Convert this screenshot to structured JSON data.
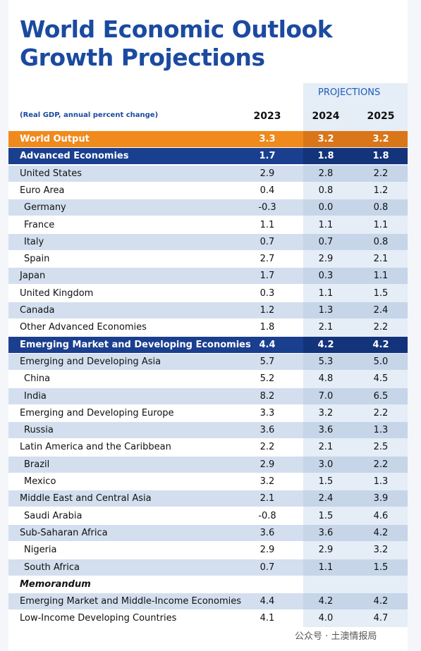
{
  "header": {
    "title": [
      "World Economic Outlook",
      "Growth Projections"
    ],
    "projections": "PROJECTIONS",
    "subtitle": "(Real GDP, annual percent change)",
    "years": [
      "2023",
      "2024",
      "2025"
    ]
  },
  "table": {
    "rows": [
      {
        "label": "World Output",
        "values": [
          "3.3",
          "3.2",
          "3.2"
        ]
      },
      {
        "label": "Advanced Economies",
        "values": [
          "1.7",
          "1.8",
          "1.8"
        ]
      },
      {
        "label": "United States",
        "values": [
          "2.9",
          "2.8",
          "2.2"
        ]
      },
      {
        "label": "Euro Area",
        "values": [
          "0.4",
          "0.8",
          "1.2"
        ]
      },
      {
        "label": "Germany",
        "values": [
          "-0.3",
          "0.0",
          "0.8"
        ]
      },
      {
        "label": "France",
        "values": [
          "1.1",
          "1.1",
          "1.1"
        ]
      },
      {
        "label": "Italy",
        "values": [
          "0.7",
          "0.7",
          "0.8"
        ]
      },
      {
        "label": "Spain",
        "values": [
          "2.7",
          "2.9",
          "2.1"
        ]
      },
      {
        "label": "Japan",
        "values": [
          "1.7",
          "0.3",
          "1.1"
        ]
      },
      {
        "label": "United Kingdom",
        "values": [
          "0.3",
          "1.1",
          "1.5"
        ]
      },
      {
        "label": "Canada",
        "values": [
          "1.2",
          "1.3",
          "2.4"
        ]
      },
      {
        "label": "Other Advanced Economies",
        "values": [
          "1.8",
          "2.1",
          "2.2"
        ]
      },
      {
        "label": "Emerging Market and Developing Economies",
        "values": [
          "4.4",
          "4.2",
          "4.2"
        ]
      },
      {
        "label": "Emerging and Developing Asia",
        "values": [
          "5.7",
          "5.3",
          "5.0"
        ]
      },
      {
        "label": "China",
        "values": [
          "5.2",
          "4.8",
          "4.5"
        ]
      },
      {
        "label": "India",
        "values": [
          "8.2",
          "7.0",
          "6.5"
        ]
      },
      {
        "label": "Emerging and Developing Europe",
        "values": [
          "3.3",
          "3.2",
          "2.2"
        ]
      },
      {
        "label": "Russia",
        "values": [
          "3.6",
          "3.6",
          "1.3"
        ]
      },
      {
        "label": "Latin America and the Caribbean",
        "values": [
          "2.2",
          "2.1",
          "2.5"
        ]
      },
      {
        "label": "Brazil",
        "values": [
          "2.9",
          "3.0",
          "2.2"
        ]
      },
      {
        "label": "Mexico",
        "values": [
          "3.2",
          "1.5",
          "1.3"
        ]
      },
      {
        "label": "Middle East and Central Asia",
        "values": [
          "2.1",
          "2.4",
          "3.9"
        ]
      },
      {
        "label": "Saudi Arabia",
        "values": [
          "-0.8",
          "1.5",
          "4.6"
        ]
      },
      {
        "label": "Sub-Saharan Africa",
        "values": [
          "3.6",
          "3.6",
          "4.2"
        ]
      },
      {
        "label": "Nigeria",
        "values": [
          "2.9",
          "2.9",
          "3.2"
        ]
      },
      {
        "label": "South Africa",
        "values": [
          "0.7",
          "1.1",
          "1.5"
        ]
      },
      {
        "label": "Memorandum"
      },
      {
        "label": "Emerging Market and Middle-Income Economies",
        "values": [
          "4.4",
          "4.2",
          "4.2"
        ]
      },
      {
        "label": "Low-Income Developing Countries",
        "values": [
          "4.1",
          "4.0",
          "4.7"
        ]
      }
    ]
  },
  "footer": {
    "watermark": "公众号 · 土澳情报局"
  }
}
